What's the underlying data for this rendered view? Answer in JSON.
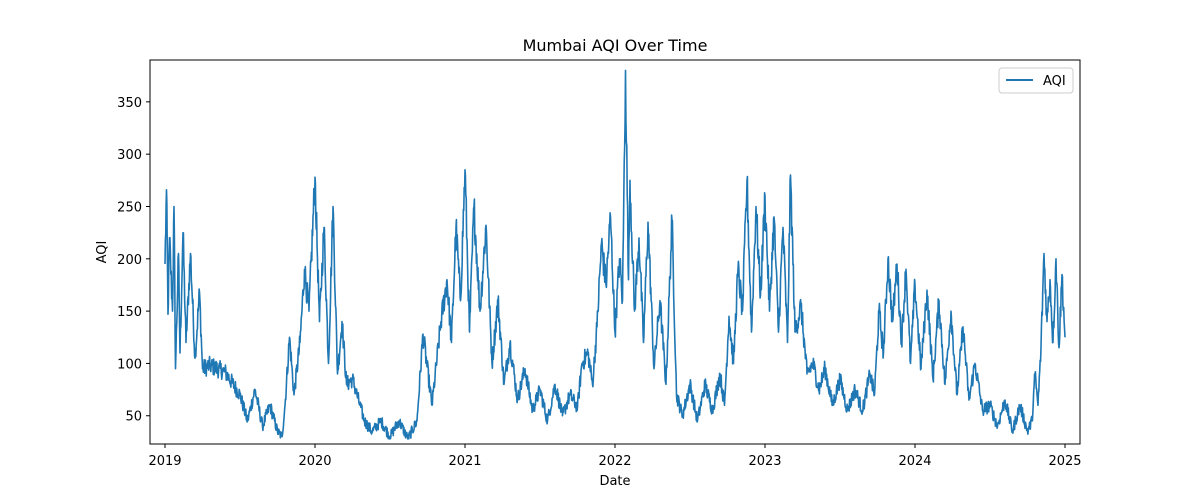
{
  "chart_data": {
    "type": "line",
    "title": "Mumbai AQI Over Time",
    "xlabel": "Date",
    "ylabel": "AQI",
    "legend": {
      "placement": "top-right",
      "entries": [
        "AQI"
      ]
    },
    "grid": false,
    "xlim": [
      2018.9,
      2025.1
    ],
    "ylim": [
      23,
      390
    ],
    "x_ticks": [
      2019,
      2020,
      2021,
      2022,
      2023,
      2024,
      2025
    ],
    "x_tick_labels": [
      "2019",
      "2020",
      "2021",
      "2022",
      "2023",
      "2024",
      "2025"
    ],
    "y_ticks": [
      50,
      100,
      150,
      200,
      250,
      300,
      350
    ],
    "y_tick_labels": [
      "50",
      "100",
      "150",
      "200",
      "250",
      "300",
      "350"
    ],
    "series": [
      {
        "name": "AQI",
        "color": "#1f77b4",
        "anchors": [
          [
            2019.0,
            195
          ],
          [
            2019.01,
            266
          ],
          [
            2019.02,
            147
          ],
          [
            2019.03,
            220
          ],
          [
            2019.05,
            150
          ],
          [
            2019.06,
            250
          ],
          [
            2019.07,
            95
          ],
          [
            2019.09,
            205
          ],
          [
            2019.1,
            110
          ],
          [
            2019.12,
            225
          ],
          [
            2019.14,
            120
          ],
          [
            2019.17,
            205
          ],
          [
            2019.2,
            105
          ],
          [
            2019.23,
            168
          ],
          [
            2019.25,
            95
          ],
          [
            2019.3,
            98
          ],
          [
            2019.4,
            92
          ],
          [
            2019.5,
            70
          ],
          [
            2019.55,
            45
          ],
          [
            2019.6,
            75
          ],
          [
            2019.65,
            40
          ],
          [
            2019.7,
            60
          ],
          [
            2019.75,
            35
          ],
          [
            2019.78,
            30
          ],
          [
            2019.8,
            60
          ],
          [
            2019.83,
            125
          ],
          [
            2019.86,
            70
          ],
          [
            2019.9,
            120
          ],
          [
            2019.93,
            190
          ],
          [
            2019.96,
            150
          ],
          [
            2020.0,
            278
          ],
          [
            2020.03,
            140
          ],
          [
            2020.06,
            230
          ],
          [
            2020.09,
            100
          ],
          [
            2020.12,
            250
          ],
          [
            2020.15,
            90
          ],
          [
            2020.18,
            140
          ],
          [
            2020.21,
            80
          ],
          [
            2020.25,
            85
          ],
          [
            2020.3,
            60
          ],
          [
            2020.33,
            45
          ],
          [
            2020.38,
            35
          ],
          [
            2020.44,
            45
          ],
          [
            2020.5,
            30
          ],
          [
            2020.56,
            45
          ],
          [
            2020.62,
            28
          ],
          [
            2020.68,
            45
          ],
          [
            2020.72,
            128
          ],
          [
            2020.78,
            60
          ],
          [
            2020.84,
            140
          ],
          [
            2020.88,
            180
          ],
          [
            2020.91,
            120
          ],
          [
            2020.94,
            230
          ],
          [
            2020.97,
            160
          ],
          [
            2021.0,
            285
          ],
          [
            2021.03,
            130
          ],
          [
            2021.06,
            250
          ],
          [
            2021.1,
            150
          ],
          [
            2021.14,
            232
          ],
          [
            2021.18,
            100
          ],
          [
            2021.22,
            160
          ],
          [
            2021.26,
            80
          ],
          [
            2021.3,
            120
          ],
          [
            2021.35,
            65
          ],
          [
            2021.4,
            95
          ],
          [
            2021.45,
            55
          ],
          [
            2021.5,
            75
          ],
          [
            2021.55,
            45
          ],
          [
            2021.6,
            80
          ],
          [
            2021.65,
            50
          ],
          [
            2021.7,
            70
          ],
          [
            2021.75,
            58
          ],
          [
            2021.78,
            100
          ],
          [
            2021.82,
            110
          ],
          [
            2021.85,
            80
          ],
          [
            2021.88,
            135
          ],
          [
            2021.91,
            215
          ],
          [
            2021.94,
            175
          ],
          [
            2021.97,
            240
          ],
          [
            2022.0,
            130
          ],
          [
            2022.03,
            200
          ],
          [
            2022.05,
            160
          ],
          [
            2022.07,
            380
          ],
          [
            2022.09,
            180
          ],
          [
            2022.1,
            275
          ],
          [
            2022.13,
            150
          ],
          [
            2022.16,
            220
          ],
          [
            2022.19,
            120
          ],
          [
            2022.22,
            235
          ],
          [
            2022.26,
            95
          ],
          [
            2022.3,
            160
          ],
          [
            2022.34,
            80
          ],
          [
            2022.38,
            237
          ],
          [
            2022.41,
            70
          ],
          [
            2022.45,
            50
          ],
          [
            2022.5,
            80
          ],
          [
            2022.55,
            45
          ],
          [
            2022.6,
            80
          ],
          [
            2022.65,
            55
          ],
          [
            2022.7,
            90
          ],
          [
            2022.73,
            60
          ],
          [
            2022.76,
            145
          ],
          [
            2022.79,
            100
          ],
          [
            2022.82,
            190
          ],
          [
            2022.85,
            150
          ],
          [
            2022.88,
            275
          ],
          [
            2022.91,
            130
          ],
          [
            2022.94,
            250
          ],
          [
            2022.97,
            165
          ],
          [
            2023.0,
            260
          ],
          [
            2023.03,
            150
          ],
          [
            2023.06,
            240
          ],
          [
            2023.09,
            130
          ],
          [
            2023.12,
            230
          ],
          [
            2023.15,
            120
          ],
          [
            2023.17,
            280
          ],
          [
            2023.2,
            130
          ],
          [
            2023.24,
            155
          ],
          [
            2023.28,
            90
          ],
          [
            2023.32,
            100
          ],
          [
            2023.36,
            75
          ],
          [
            2023.4,
            95
          ],
          [
            2023.45,
            60
          ],
          [
            2023.5,
            85
          ],
          [
            2023.55,
            55
          ],
          [
            2023.6,
            75
          ],
          [
            2023.65,
            55
          ],
          [
            2023.7,
            90
          ],
          [
            2023.73,
            70
          ],
          [
            2023.76,
            150
          ],
          [
            2023.79,
            110
          ],
          [
            2023.82,
            200
          ],
          [
            2023.85,
            140
          ],
          [
            2023.88,
            195
          ],
          [
            2023.91,
            120
          ],
          [
            2023.94,
            190
          ],
          [
            2023.97,
            100
          ],
          [
            2024.0,
            175
          ],
          [
            2024.04,
            95
          ],
          [
            2024.08,
            170
          ],
          [
            2024.12,
            85
          ],
          [
            2024.16,
            160
          ],
          [
            2024.2,
            80
          ],
          [
            2024.24,
            150
          ],
          [
            2024.28,
            70
          ],
          [
            2024.32,
            135
          ],
          [
            2024.36,
            65
          ],
          [
            2024.4,
            100
          ],
          [
            2024.45,
            55
          ],
          [
            2024.5,
            60
          ],
          [
            2024.55,
            40
          ],
          [
            2024.6,
            65
          ],
          [
            2024.65,
            35
          ],
          [
            2024.7,
            60
          ],
          [
            2024.75,
            35
          ],
          [
            2024.78,
            45
          ],
          [
            2024.8,
            90
          ],
          [
            2024.82,
            60
          ],
          [
            2024.84,
            115
          ],
          [
            2024.86,
            205
          ],
          [
            2024.88,
            140
          ],
          [
            2024.9,
            180
          ],
          [
            2024.92,
            120
          ],
          [
            2024.94,
            200
          ],
          [
            2024.96,
            115
          ],
          [
            2024.98,
            185
          ],
          [
            2025.0,
            125
          ]
        ]
      }
    ]
  }
}
